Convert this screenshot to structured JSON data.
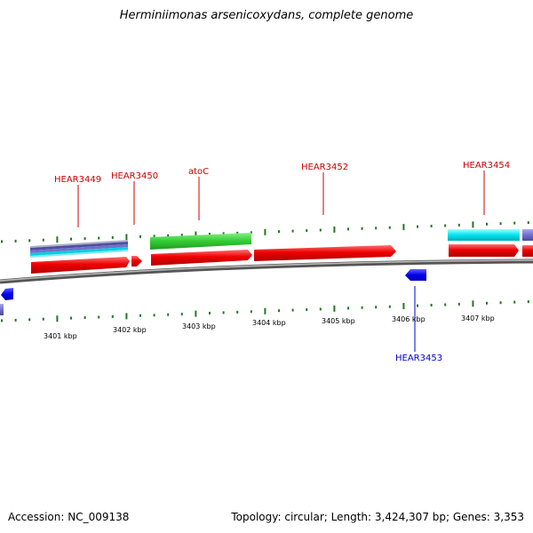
{
  "title": "Herminiimonas arsenicoxydans, complete genome",
  "footer": {
    "accession": "Accession: NC_009138",
    "summary": "Topology: circular; Length: 3,424,307 bp; Genes: 3,353"
  },
  "scale_labels": [
    "3401 kbp",
    "3402 kbp",
    "3403 kbp",
    "3404 kbp",
    "3405 kbp",
    "3406 kbp",
    "3407 kbp"
  ],
  "gene_labels_top": [
    "HEAR3449",
    "HEAR3450",
    "atoC",
    "HEAR3452",
    "HEAR3454"
  ],
  "gene_labels_bottom": [
    "HEAR3453"
  ],
  "colors": {
    "cds": "#ff0000",
    "green_feature": "#33cc33",
    "cyan_feature": "#00e5ee",
    "purple_feature": "#7070cc",
    "blue_feature": "#0000ee",
    "tick": "#227722",
    "backbone": "#888888",
    "top_label": "#cc0000",
    "bottom_label": "#0000cc"
  }
}
